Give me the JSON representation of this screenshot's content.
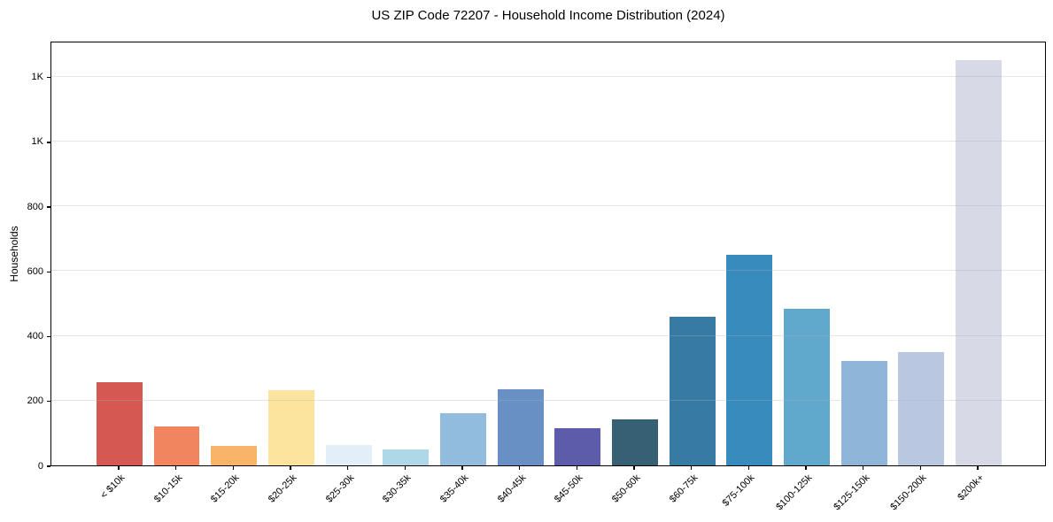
{
  "chart_data": {
    "type": "bar",
    "title": "US ZIP Code 72207 - Household Income Distribution (2024)",
    "xlabel": "",
    "ylabel": "Households",
    "categories": [
      "< $10k",
      "$10-15k",
      "$15-20k",
      "$20-25k",
      "$25-30k",
      "$30-35k",
      "$35-40k",
      "$40-45k",
      "$45-50k",
      "$50-60k",
      "$60-75k",
      "$75-100k",
      "$100-125k",
      "$125-150k",
      "$150-200k",
      "$200k+"
    ],
    "values": [
      258,
      121,
      60,
      232,
      62,
      50,
      162,
      235,
      115,
      143,
      460,
      651,
      483,
      322,
      350,
      1251
    ],
    "bar_colors": [
      "#d65852",
      "#f0855f",
      "#f8b469",
      "#fde49e",
      "#e2eff8",
      "#aed8e8",
      "#92bcdd",
      "#6890c4",
      "#5c5cab",
      "#366073",
      "#377ba3",
      "#388cbd",
      "#61a9cc",
      "#8fb6d8",
      "#b9c8e0",
      "#d7d9e7"
    ],
    "ylim": [
      0,
      1311
    ],
    "yticks": [
      {
        "value": 0,
        "label": "0"
      },
      {
        "value": 200,
        "label": "200"
      },
      {
        "value": 400,
        "label": "400"
      },
      {
        "value": 600,
        "label": "600"
      },
      {
        "value": 800,
        "label": "800"
      },
      {
        "value": 1000,
        "label": "1K"
      },
      {
        "value": 1200,
        "label": "1K"
      }
    ],
    "grid": "horizontal",
    "grid_color": "#e8e8f0",
    "axis_color": "#000000",
    "background": "#ffffff",
    "legend": "none",
    "bar_width_fraction": 0.8,
    "x_edge_padding_units": 1.19
  }
}
